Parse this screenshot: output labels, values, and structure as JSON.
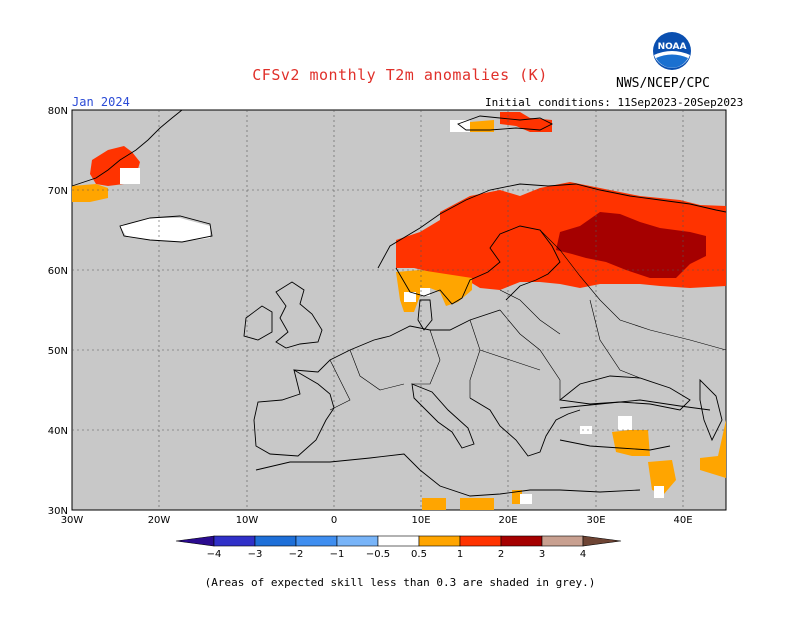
{
  "header": {
    "title": "CFSv2 monthly T2m anomalies (K)",
    "agency": "NWS/NCEP/CPC",
    "logo_text": "NOAA",
    "month": "Jan 2024",
    "initial_conditions": "Initial conditions: 11Sep2023-20Sep2023"
  },
  "map": {
    "region": "Europe",
    "lon_range": [
      -30,
      45
    ],
    "lat_range": [
      30,
      80
    ],
    "lat_ticks": [
      "30N",
      "40N",
      "50N",
      "60N",
      "70N",
      "80N"
    ],
    "lon_ticks": [
      "30W",
      "20W",
      "10W",
      "0",
      "10E",
      "20E",
      "30E",
      "40E"
    ],
    "background_color": "#c8c8c8",
    "anomaly_regions": [
      {
        "name": "Scandinavia and western Russia",
        "category": "1 to 2",
        "color": "#ff3300"
      },
      {
        "name": "Western Russia core",
        "category": "2 to 3",
        "color": "#a50000"
      },
      {
        "name": "Southern Norway and Sweden",
        "category": "0.5 to 1",
        "color": "#ffa500"
      },
      {
        "name": "Southwest Greenland",
        "category": "1 to 2",
        "color": "#ff3300"
      },
      {
        "name": "Svalbard",
        "category": "1 to 2",
        "color": "#ff3300"
      },
      {
        "name": "Turkey and Middle East",
        "category": "0.5 to 1",
        "color": "#ffa500"
      },
      {
        "name": "Libya coast",
        "category": "0.5 to 1",
        "color": "#ffa500"
      }
    ]
  },
  "colorbar": {
    "labels": [
      "−4",
      "−3",
      "−2",
      "−1",
      "−0.5",
      "0.5",
      "1",
      "2",
      "3",
      "4"
    ],
    "colors": [
      "#2a0b8f",
      "#3030c8",
      "#1e6fd8",
      "#3f8ef0",
      "#78b4f8",
      "#ffffff",
      "#ffa500",
      "#ff3300",
      "#a50000",
      "#c8a090",
      "#6e4434"
    ]
  },
  "footnote": "(Areas of expected skill less than 0.3 are shaded in grey.)"
}
